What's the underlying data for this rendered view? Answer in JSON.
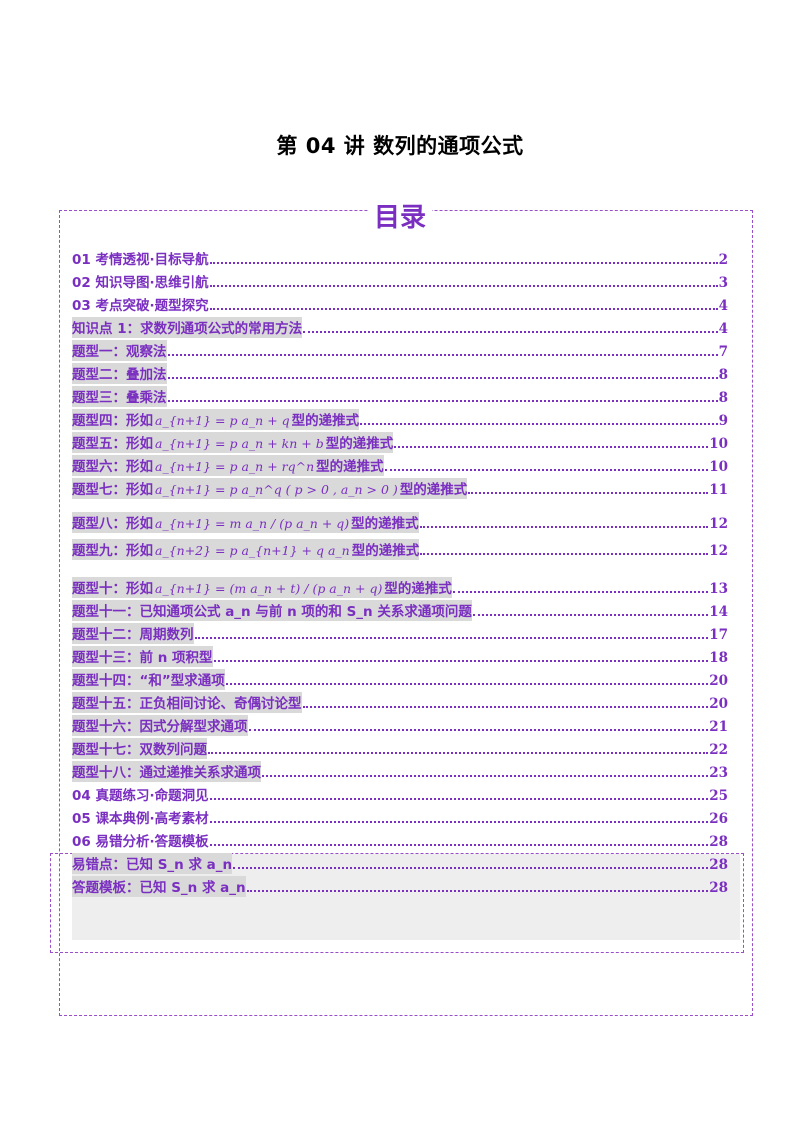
{
  "title": "第 04 讲  数列的通项公式",
  "toc_heading": "目录",
  "items": [
    {
      "prefix": "01 考情透视·目标导航",
      "formula": "",
      "suffix": "",
      "page": "2",
      "shaded": false
    },
    {
      "prefix": "02 知识导图·思维引航",
      "formula": "",
      "suffix": "",
      "page": "3",
      "shaded": false
    },
    {
      "prefix": "03 考点突破·题型探究",
      "formula": "",
      "suffix": "",
      "page": "4",
      "shaded": false
    },
    {
      "prefix": "知识点 1：求数列通项公式的常用方法",
      "formula": "",
      "suffix": "",
      "page": "4",
      "shaded": true
    },
    {
      "prefix": "题型一：观察法",
      "formula": "",
      "suffix": "",
      "page": "7",
      "shaded": true
    },
    {
      "prefix": "题型二：叠加法",
      "formula": "",
      "suffix": "",
      "page": "8",
      "shaded": true
    },
    {
      "prefix": "题型三：叠乘法",
      "formula": "",
      "suffix": "",
      "page": "8",
      "shaded": true
    },
    {
      "prefix": "题型四：形如",
      "formula": "a_{n+1} = p a_n + q",
      "suffix": "型的递推式",
      "page": "9",
      "shaded": true
    },
    {
      "prefix": "题型五：形如",
      "formula": "a_{n+1} = p a_n + kn + b",
      "suffix": "型的递推式",
      "page": "10",
      "shaded": true
    },
    {
      "prefix": "题型六：形如",
      "formula": "a_{n+1} = p a_n + rq^n",
      "suffix": "型的递推式",
      "page": "10",
      "shaded": true
    },
    {
      "prefix": "题型七：形如",
      "formula": "a_{n+1} = p a_n^q ( p > 0 , a_n > 0 )",
      "suffix": "型的递推式",
      "page": "11",
      "shaded": true
    },
    {
      "prefix": "题型八：形如",
      "formula": "a_{n+1} = m a_n / (p a_n + q)",
      "suffix": "型的递推式",
      "page": "12",
      "shaded": true
    },
    {
      "prefix": "题型九：形如",
      "formula": "a_{n+2} = p a_{n+1} + q a_n",
      "suffix": "型的递推式",
      "page": "12",
      "shaded": true
    },
    {
      "prefix": "题型十：形如",
      "formula": "a_{n+1} = (m a_n + t) / (p a_n + q)",
      "suffix": "型的递推式",
      "page": "13",
      "shaded": true
    },
    {
      "prefix": "题型十一：已知通项公式 a_n 与前 n 项的和 S_n 关系求通项问题",
      "formula": "",
      "suffix": "",
      "page": "14",
      "shaded": true
    },
    {
      "prefix": "题型十二：周期数列",
      "formula": "",
      "suffix": "",
      "page": "17",
      "shaded": true
    },
    {
      "prefix": "题型十三：前 n 项积型",
      "formula": "",
      "suffix": "",
      "page": "18",
      "shaded": true
    },
    {
      "prefix": "题型十四：“和”型求通项",
      "formula": "",
      "suffix": "",
      "page": "20",
      "shaded": true
    },
    {
      "prefix": "题型十五：正负相间讨论、奇偶讨论型",
      "formula": "",
      "suffix": "",
      "page": "20",
      "shaded": true
    },
    {
      "prefix": "题型十六：因式分解型求通项",
      "formula": "",
      "suffix": "",
      "page": "21",
      "shaded": true
    },
    {
      "prefix": "题型十七：双数列问题",
      "formula": "",
      "suffix": "",
      "page": "22",
      "shaded": true
    },
    {
      "prefix": "题型十八：通过递推关系求通项",
      "formula": "",
      "suffix": "",
      "page": "23",
      "shaded": true
    },
    {
      "prefix": "04 真题练习·命题洞见",
      "formula": "",
      "suffix": "",
      "page": "25",
      "shaded": false
    },
    {
      "prefix": "05 课本典例·高考素材",
      "formula": "",
      "suffix": "",
      "page": "26",
      "shaded": false
    },
    {
      "prefix": "06 易错分析·答题模板",
      "formula": "",
      "suffix": "",
      "page": "28",
      "shaded": false
    },
    {
      "prefix": "易错点：已知 S_n 求 a_n",
      "formula": "",
      "suffix": "",
      "page": "28",
      "shaded": true
    },
    {
      "prefix": "答题模板：已知 S_n 求 a_n",
      "formula": "",
      "suffix": "",
      "page": "28",
      "shaded": true
    }
  ]
}
